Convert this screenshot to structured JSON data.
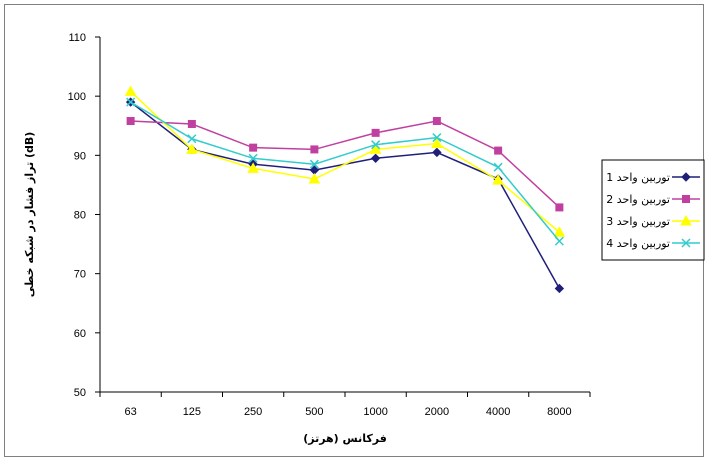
{
  "chart_data": {
    "type": "line",
    "categories": [
      "63",
      "125",
      "250",
      "500",
      "1000",
      "2000",
      "4000",
      "8000"
    ],
    "series": [
      {
        "name": "توربین واحد 1",
        "color": "#1f1f7a",
        "marker": "diamond",
        "values": [
          99.0,
          91.0,
          88.5,
          87.5,
          89.5,
          90.5,
          86.0,
          67.5
        ]
      },
      {
        "name": "توربین واحد 2",
        "color": "#c040a0",
        "marker": "square",
        "values": [
          95.8,
          95.3,
          91.3,
          91.0,
          93.8,
          95.8,
          90.8,
          81.2
        ]
      },
      {
        "name": "توربین واحد 3",
        "color": "#ffff00",
        "marker": "triangle",
        "values": [
          100.8,
          91.0,
          87.8,
          86.0,
          91.0,
          92.0,
          85.8,
          77.0
        ]
      },
      {
        "name": "توربین واحد 4",
        "color": "#33cccc",
        "marker": "x",
        "values": [
          99.0,
          92.8,
          89.5,
          88.5,
          91.8,
          93.0,
          88.0,
          75.5
        ]
      }
    ],
    "xlabel": "فرکانس (هرتز)",
    "ylabel": "تراز فشار در شبکه خطی (dB)",
    "ylim": [
      50,
      110
    ],
    "yticks": [
      50,
      60,
      70,
      80,
      90,
      100,
      110
    ],
    "grid": false,
    "legend_position": "right"
  }
}
